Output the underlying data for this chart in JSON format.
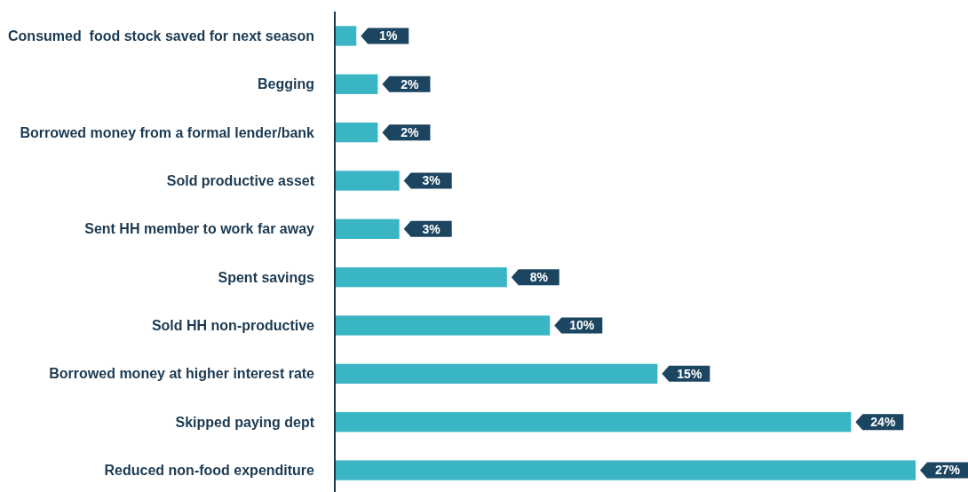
{
  "chart_data": {
    "type": "bar",
    "orientation": "horizontal",
    "categories": [
      "Consumed  food stock saved for next season",
      "Begging",
      "Borrowed money from a formal lender/bank",
      "Sold productive asset",
      "Sent HH member to work far away",
      "Spent savings",
      "Sold HH non-productive",
      "Borrowed money at higher interest rate",
      "Skipped paying dept",
      "Reduced non-food expenditure"
    ],
    "values": [
      1,
      2,
      2,
      3,
      3,
      8,
      10,
      15,
      24,
      27
    ],
    "value_labels": [
      "1%",
      "2%",
      "2%",
      "3%",
      "3%",
      "8%",
      "10%",
      "15%",
      "24%",
      "27%"
    ],
    "color": "#39b5c4"
  }
}
